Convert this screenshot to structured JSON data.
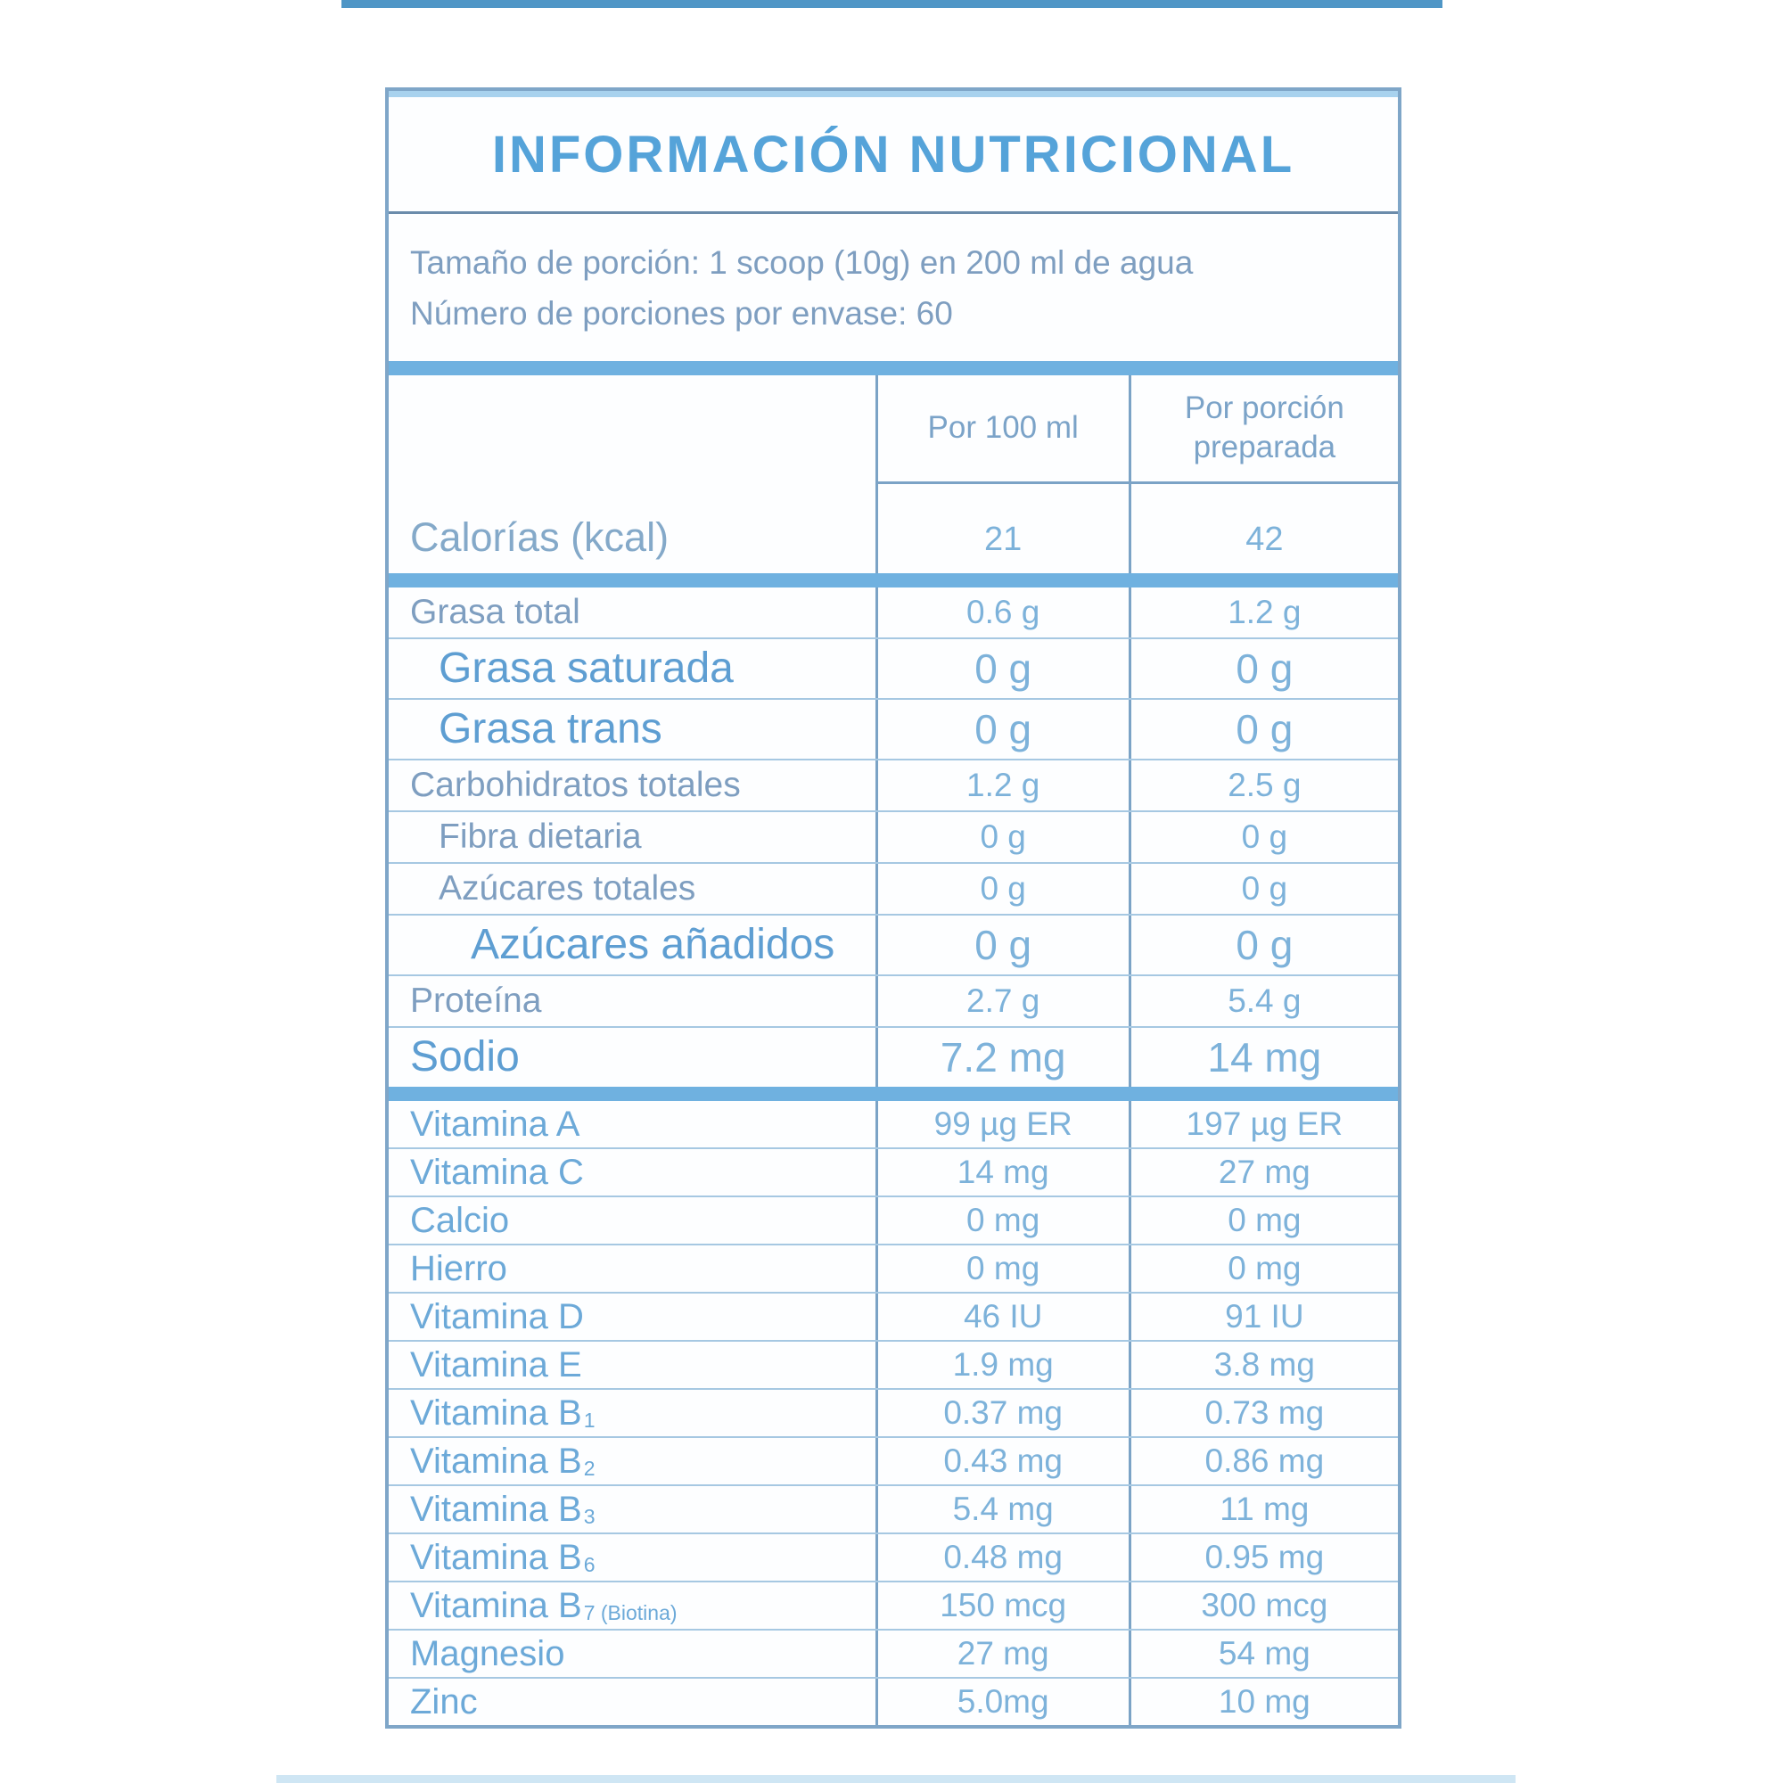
{
  "header": {
    "title": "INFORMACIÓN NUTRICIONAL"
  },
  "serving": {
    "line1": "Tamaño de porción: 1 scoop (10g) en 200 ml de agua",
    "line2": "Número de porciones por envase: 60"
  },
  "column_headers": {
    "per_100ml": "Por 100 ml",
    "per_portion": "Por porción preparada"
  },
  "calories": {
    "label": "Calorías (kcal)",
    "per_100ml": "21",
    "per_portion": "42"
  },
  "rows": {
    "macros": [
      {
        "label": "Grasa total",
        "per_100ml": "0.6 g",
        "per_portion": "1.2 g",
        "size": "normal",
        "indent": 0
      },
      {
        "label": "Grasa saturada",
        "per_100ml": "0 g",
        "per_portion": "0 g",
        "size": "large",
        "indent": 1
      },
      {
        "label": "Grasa trans",
        "per_100ml": "0 g",
        "per_portion": "0 g",
        "size": "large",
        "indent": 1
      },
      {
        "label": "Carbohidratos totales",
        "per_100ml": "1.2 g",
        "per_portion": "2.5 g",
        "size": "normal",
        "indent": 0
      },
      {
        "label": "Fibra dietaria",
        "per_100ml": "0 g",
        "per_portion": "0 g",
        "size": "normal",
        "indent": 1
      },
      {
        "label": "Azúcares totales",
        "per_100ml": "0 g",
        "per_portion": "0 g",
        "size": "normal",
        "indent": 1
      },
      {
        "label": "Azúcares añadidos",
        "per_100ml": "0 g",
        "per_portion": "0 g",
        "size": "large",
        "indent": 2
      },
      {
        "label": "Proteína",
        "per_100ml": "2.7 g",
        "per_portion": "5.4 g",
        "size": "normal",
        "indent": 0
      },
      {
        "label": "Sodio",
        "per_100ml": "7.2 mg",
        "per_portion": "14 mg",
        "size": "large",
        "indent": 0
      }
    ],
    "micros": [
      {
        "label": "Vitamina A",
        "per_100ml": "99 µg ER",
        "per_portion": "197 µg ER"
      },
      {
        "label": "Vitamina C",
        "per_100ml": "14 mg",
        "per_portion": "27 mg"
      },
      {
        "label": "Calcio",
        "per_100ml": "0 mg",
        "per_portion": "0 mg"
      },
      {
        "label": "Hierro",
        "per_100ml": "0 mg",
        "per_portion": "0 mg"
      },
      {
        "label": "Vitamina D",
        "per_100ml": "46 IU",
        "per_portion": "91 IU"
      },
      {
        "label": "Vitamina E",
        "per_100ml": "1.9 mg",
        "per_portion": "3.8 mg"
      },
      {
        "label": "Vitamina B",
        "sub": "1",
        "per_100ml": "0.37 mg",
        "per_portion": "0.73 mg"
      },
      {
        "label": "Vitamina B",
        "sub": "2",
        "per_100ml": "0.43 mg",
        "per_portion": "0.86 mg"
      },
      {
        "label": "Vitamina B",
        "sub": "3",
        "per_100ml": "5.4 mg",
        "per_portion": "11 mg"
      },
      {
        "label": "Vitamina B",
        "sub": "6",
        "per_100ml": "0.48 mg",
        "per_portion": "0.95 mg"
      },
      {
        "label": "Vitamina B",
        "sub": "7 (Biotina)",
        "per_100ml": "150 mcg",
        "per_portion": "300 mcg"
      },
      {
        "label": "Magnesio",
        "per_100ml": "27 mg",
        "per_portion": "54 mg"
      },
      {
        "label": "Zinc",
        "per_100ml": "5.0mg",
        "per_portion": "10 mg"
      }
    ]
  },
  "colors": {
    "accent_band": "#6fb1e0",
    "title_blue": "#55a3d9",
    "text_gray_blue": "#7e9ec0",
    "value_blue": "#7db2da",
    "top_strip": "#4f96c6",
    "bottom_strip": "#cfe6f4"
  }
}
